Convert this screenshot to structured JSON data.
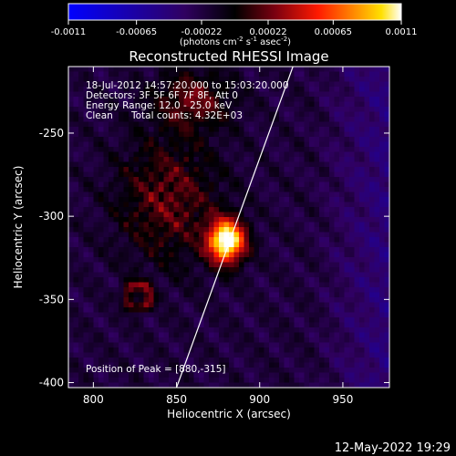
{
  "chart_data": {
    "type": "heatmap",
    "title": "Reconstructed RHESSI Image",
    "xlabel": "Heliocentric X (arcsec)",
    "ylabel": "Heliocentric Y (arcsec)",
    "xlim": [
      785,
      978
    ],
    "ylim": [
      -403,
      -210
    ],
    "x_ticks": [
      800,
      850,
      900,
      950
    ],
    "y_ticks": [
      -250,
      -300,
      -350,
      -400
    ],
    "colorbar": {
      "ticks": [
        "-0.0011",
        "-0.00065",
        "-0.00022",
        "0.00022",
        "0.00065",
        "0.0011"
      ],
      "tick_values": [
        -0.0011,
        -0.00065,
        -0.00022,
        0.00022,
        0.00065,
        0.0011
      ],
      "unit_text": "(photons cm",
      "unit_sup1": "-2",
      "unit_mid": " s",
      "unit_sup2": "-1",
      "unit_mid2": " asec",
      "unit_sup3": "-2",
      "unit_end": ")",
      "range": [
        -0.0011,
        0.0011
      ],
      "colors": [
        "#0000ff",
        "#000000",
        "#7a0010",
        "#ff1a00",
        "#ff8c00",
        "#ffe000",
        "#ffffff"
      ]
    },
    "annotations": {
      "time_range": "18-Jul-2012 14:57:20.000 to 15:03:20.000",
      "detectors": "Detectors: 3F 5F 6F 7F 8F, Att 0",
      "energy_range": "Energy Range: 12.0 - 25.0 keV",
      "method": "Clean",
      "total_counts": "Total counts: 4.32E+03",
      "peak": "Position of Peak = [880,-315]"
    },
    "limb_line": {
      "x": [
        850,
        920
      ],
      "y": [
        -403,
        -210
      ]
    },
    "sources": [
      {
        "x": 880,
        "y": -315,
        "peak": 0.0011
      },
      {
        "x": 827,
        "y": -348,
        "peak": 0.0007
      }
    ]
  },
  "footer": {
    "timestamp": "12-May-2022 19:29"
  }
}
